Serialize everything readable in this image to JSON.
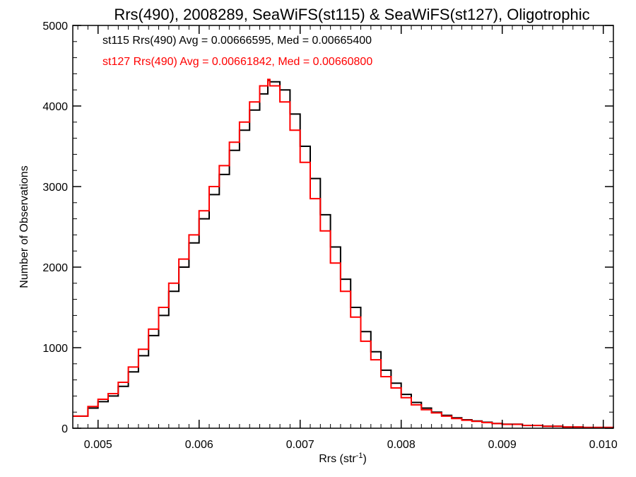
{
  "chart_data": {
    "type": "line",
    "title": "Rrs(490), 2008289, SeaWiFS(st115) & SeaWiFS(st127), Oligotrophic",
    "xlabel": "Rrs (str",
    "xlabel_sup": "-1",
    "xlabel_end": ")",
    "ylabel": "Number of Observations",
    "xlim": [
      0.00475,
      0.0101
    ],
    "ylim": [
      0,
      5000
    ],
    "xticks": [
      {
        "value": 0.005,
        "label": "0.005"
      },
      {
        "value": 0.006,
        "label": "0.006"
      },
      {
        "value": 0.007,
        "label": "0.007"
      },
      {
        "value": 0.008,
        "label": "0.008"
      },
      {
        "value": 0.009,
        "label": "0.009"
      },
      {
        "value": 0.01,
        "label": "0.010"
      }
    ],
    "yticks": [
      {
        "value": 0,
        "label": "0"
      },
      {
        "value": 1000,
        "label": "1000"
      },
      {
        "value": 2000,
        "label": "2000"
      },
      {
        "value": 3000,
        "label": "3000"
      },
      {
        "value": 4000,
        "label": "4000"
      },
      {
        "value": 5000,
        "label": "5000"
      }
    ],
    "grid": false,
    "step": "histogram",
    "x": [
      0.00475,
      0.0049,
      0.005,
      0.0051,
      0.0052,
      0.0053,
      0.0054,
      0.0055,
      0.0056,
      0.0057,
      0.0058,
      0.0059,
      0.006,
      0.0061,
      0.0062,
      0.0063,
      0.0064,
      0.0065,
      0.0066,
      0.00668,
      0.0067,
      0.0068,
      0.0069,
      0.007,
      0.0071,
      0.0072,
      0.0073,
      0.0074,
      0.0075,
      0.0076,
      0.0077,
      0.0078,
      0.0079,
      0.008,
      0.0081,
      0.0082,
      0.0083,
      0.0084,
      0.0085,
      0.0086,
      0.0087,
      0.0088,
      0.0089,
      0.009,
      0.0092,
      0.0094,
      0.0096,
      0.0098,
      0.0101
    ],
    "series": [
      {
        "name": "st115",
        "color": "#000000",
        "legend": "st115 Rrs(490) Avg = 0.00666595, Med = 0.00665400",
        "values": [
          150,
          250,
          330,
          400,
          520,
          700,
          900,
          1150,
          1400,
          1700,
          2000,
          2300,
          2600,
          2900,
          3150,
          3450,
          3700,
          3950,
          4150,
          4320,
          4300,
          4200,
          3900,
          3500,
          3100,
          2650,
          2250,
          1850,
          1500,
          1200,
          950,
          720,
          560,
          420,
          320,
          250,
          200,
          160,
          130,
          105,
          90,
          75,
          60,
          50,
          35,
          25,
          15,
          10,
          5
        ]
      },
      {
        "name": "st127",
        "color": "#ff0000",
        "legend": "st127 Rrs(490) Avg = 0.00661842, Med = 0.00660800",
        "values": [
          150,
          270,
          360,
          430,
          570,
          760,
          980,
          1230,
          1500,
          1800,
          2100,
          2400,
          2700,
          3000,
          3260,
          3550,
          3800,
          4050,
          4250,
          4330,
          4250,
          4050,
          3700,
          3300,
          2850,
          2450,
          2050,
          1700,
          1380,
          1080,
          850,
          640,
          500,
          380,
          290,
          230,
          190,
          150,
          120,
          100,
          85,
          70,
          58,
          48,
          34,
          24,
          15,
          10,
          5
        ]
      }
    ]
  }
}
